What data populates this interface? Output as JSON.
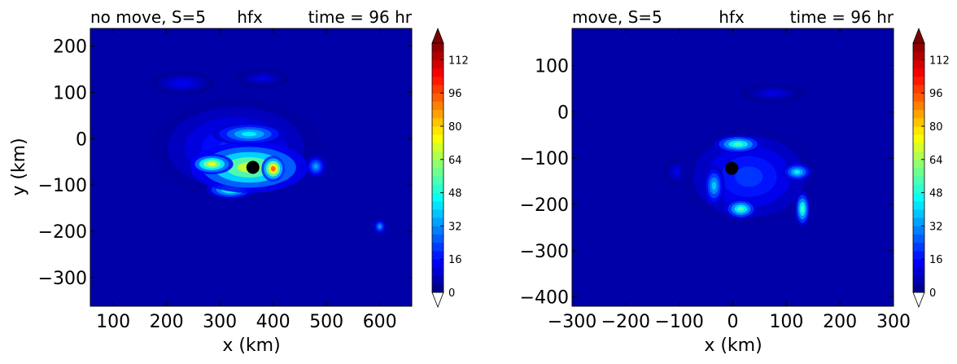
{
  "colormap": {
    "name": "jet",
    "stops": [
      "#00007f",
      "#0000ff",
      "#007fff",
      "#00ffff",
      "#7fff7f",
      "#ffff00",
      "#ff7f00",
      "#ff0000",
      "#7f0000"
    ],
    "background_color": "#0000a8",
    "marker_color": "#000000"
  },
  "chart_data": [
    {
      "type": "heatmap",
      "title_left": "no move, S=5",
      "title_center": "hfx",
      "title_right": "time = 96 hr",
      "title_left_color": "#ff0000",
      "title_center_color": "#000000",
      "title_right_color": "#0000ff",
      "xlabel": "x (km)",
      "ylabel": "y (km)",
      "xlim": [
        57,
        660
      ],
      "ylim": [
        -362,
        238
      ],
      "xticks": [
        100,
        200,
        300,
        400,
        500,
        600
      ],
      "xtick_labels": [
        "100",
        "200",
        "300",
        "400",
        "500",
        "600"
      ],
      "yticks": [
        200,
        100,
        0,
        -100,
        -200,
        -300
      ],
      "ytick_labels": [
        "200",
        "100",
        "0",
        "−100",
        "−200",
        "−300"
      ],
      "storm_center": {
        "x": 362,
        "y": -62
      },
      "colorbar": {
        "min": 0,
        "max": 120,
        "step": 4,
        "ticks": [
          "0",
          "16",
          "32",
          "48",
          "64",
          "80",
          "96",
          "112"
        ],
        "extend": "both"
      },
      "features": [
        {
          "x": 355,
          "y": -62,
          "value": 70,
          "sx": 110,
          "sy": 55
        },
        {
          "x": 400,
          "y": -65,
          "value": 95,
          "sx": 22,
          "sy": 28
        },
        {
          "x": 285,
          "y": -55,
          "value": 75,
          "sx": 40,
          "sy": 22
        },
        {
          "x": 320,
          "y": -110,
          "value": 55,
          "sx": 45,
          "sy": 20
        },
        {
          "x": 355,
          "y": 10,
          "value": 45,
          "sx": 70,
          "sy": 25
        },
        {
          "x": 480,
          "y": -60,
          "value": 35,
          "sx": 20,
          "sy": 25
        },
        {
          "x": 600,
          "y": -190,
          "value": 35,
          "sx": 12,
          "sy": 16
        },
        {
          "x": 330,
          "y": -20,
          "value": 20,
          "sx": 160,
          "sy": 110
        },
        {
          "x": 230,
          "y": 120,
          "value": 14,
          "sx": 60,
          "sy": 25
        },
        {
          "x": 380,
          "y": 130,
          "value": 12,
          "sx": 50,
          "sy": 20
        }
      ]
    },
    {
      "type": "heatmap",
      "title_left": "move, S=5",
      "title_center": "hfx",
      "title_right": "time = 96 hr",
      "title_left_color": "#ff0000",
      "title_center_color": "#000000",
      "title_right_color": "#0000ff",
      "xlabel": "x (km)",
      "ylabel": "",
      "xlim": [
        -300,
        300
      ],
      "ylim": [
        -420,
        180
      ],
      "xticks": [
        -300,
        -200,
        -100,
        0,
        100,
        200,
        300
      ],
      "xtick_labels": [
        "−300",
        "−200",
        "−100",
        "0",
        "100",
        "200",
        "300"
      ],
      "yticks": [
        100,
        0,
        -100,
        -200,
        -300,
        -400
      ],
      "ytick_labels": [
        "100",
        "0",
        "−100",
        "−200",
        "−300",
        "−400"
      ],
      "storm_center": {
        "x": -2,
        "y": -122
      },
      "colorbar": {
        "min": 0,
        "max": 120,
        "step": 4,
        "ticks": [
          "0",
          "16",
          "32",
          "48",
          "64",
          "80",
          "96",
          "112"
        ],
        "extend": "both"
      },
      "features": [
        {
          "x": 10,
          "y": -70,
          "value": 55,
          "sx": 45,
          "sy": 20
        },
        {
          "x": 15,
          "y": -210,
          "value": 55,
          "sx": 30,
          "sy": 22
        },
        {
          "x": 130,
          "y": -210,
          "value": 55,
          "sx": 14,
          "sy": 38
        },
        {
          "x": 120,
          "y": -130,
          "value": 45,
          "sx": 28,
          "sy": 20
        },
        {
          "x": -35,
          "y": -160,
          "value": 40,
          "sx": 20,
          "sy": 45
        },
        {
          "x": 30,
          "y": -140,
          "value": 22,
          "sx": 130,
          "sy": 110
        },
        {
          "x": -100,
          "y": -130,
          "value": 14,
          "sx": 30,
          "sy": 30
        },
        {
          "x": 75,
          "y": 40,
          "value": 12,
          "sx": 60,
          "sy": 20
        }
      ]
    }
  ]
}
